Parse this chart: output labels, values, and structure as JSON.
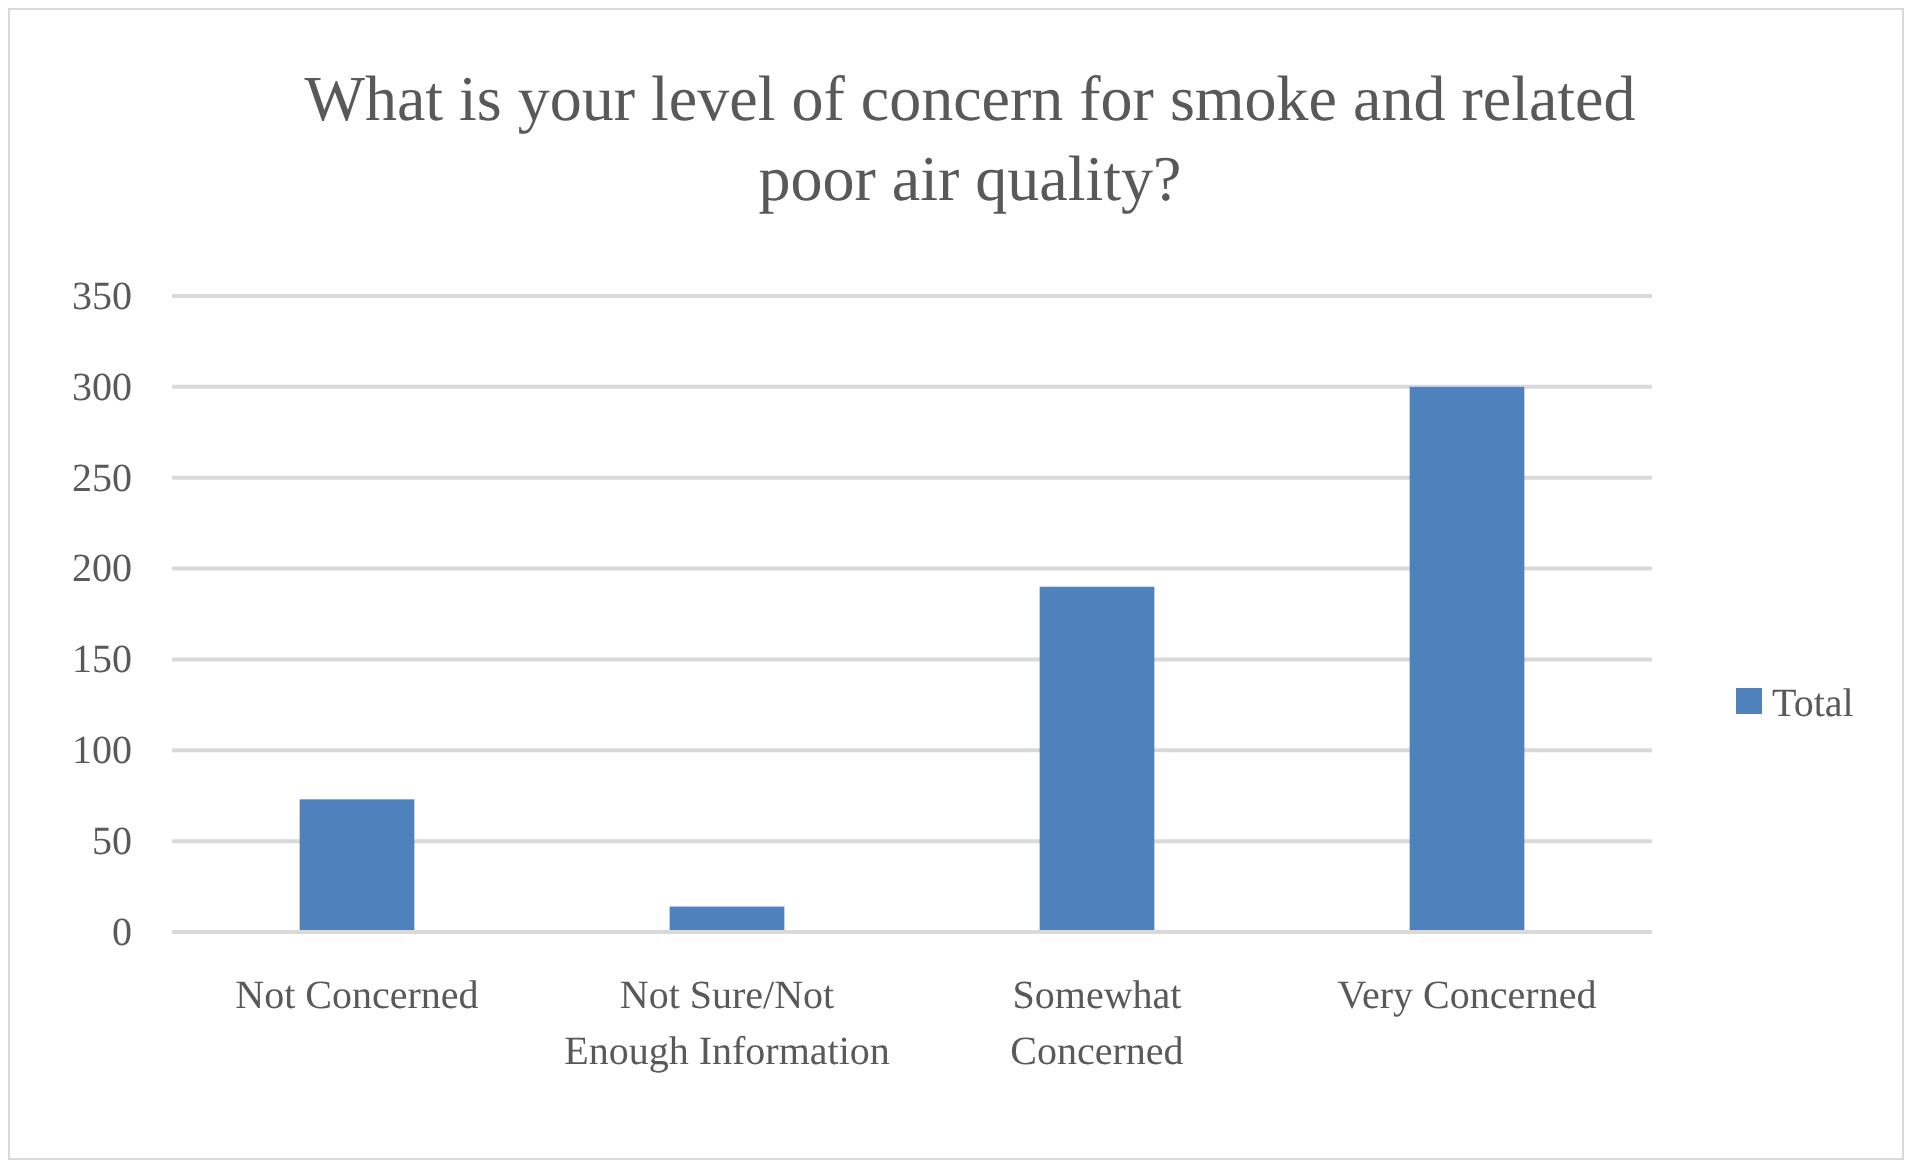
{
  "chart_data": {
    "type": "bar",
    "title": "What is your level of concern for smoke and related poor air quality?",
    "categories": [
      "Not Concerned",
      "Not Sure/Not Enough Information",
      "Somewhat Concerned",
      "Very Concerned"
    ],
    "series": [
      {
        "name": "Total",
        "color": "#4f81bd",
        "values": [
          73,
          14,
          190,
          300
        ]
      }
    ],
    "ylim": [
      0,
      350
    ],
    "yticks": [
      0,
      50,
      100,
      150,
      200,
      250,
      300,
      350
    ],
    "grid": "y",
    "legend": "right"
  }
}
